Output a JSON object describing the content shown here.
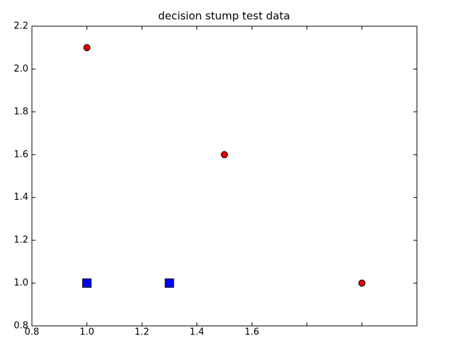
{
  "chart_data": {
    "type": "scatter",
    "title": "decision stump test data",
    "series": [
      {
        "color": "#e00000",
        "marker": "circle",
        "x": [
          1.0,
          1.5,
          2.0
        ],
        "values": [
          2.1,
          1.6,
          1.0
        ]
      },
      {
        "color": "#0000ff",
        "marker": "square",
        "x": [
          1.0,
          1.3
        ],
        "values": [
          1.0,
          1.0
        ]
      }
    ],
    "xlim": [
      0.8,
      2.2
    ],
    "xticks": [
      0.8,
      {
        "value": 1,
        "label": "1.0"
      },
      1.2,
      1.4,
      1.6,
      {
        "value": 1.8,
        "label": null
      },
      {
        "value": 2,
        "label": null
      }
    ],
    "ylim": [
      0.8,
      2.2
    ],
    "yticks": [
      0.8,
      {
        "value": 1,
        "label": "1.0"
      },
      1.2,
      1.4,
      1.6,
      1.8,
      {
        "value": 2,
        "label": "2.0"
      },
      2.2
    ],
    "grid": false
  }
}
